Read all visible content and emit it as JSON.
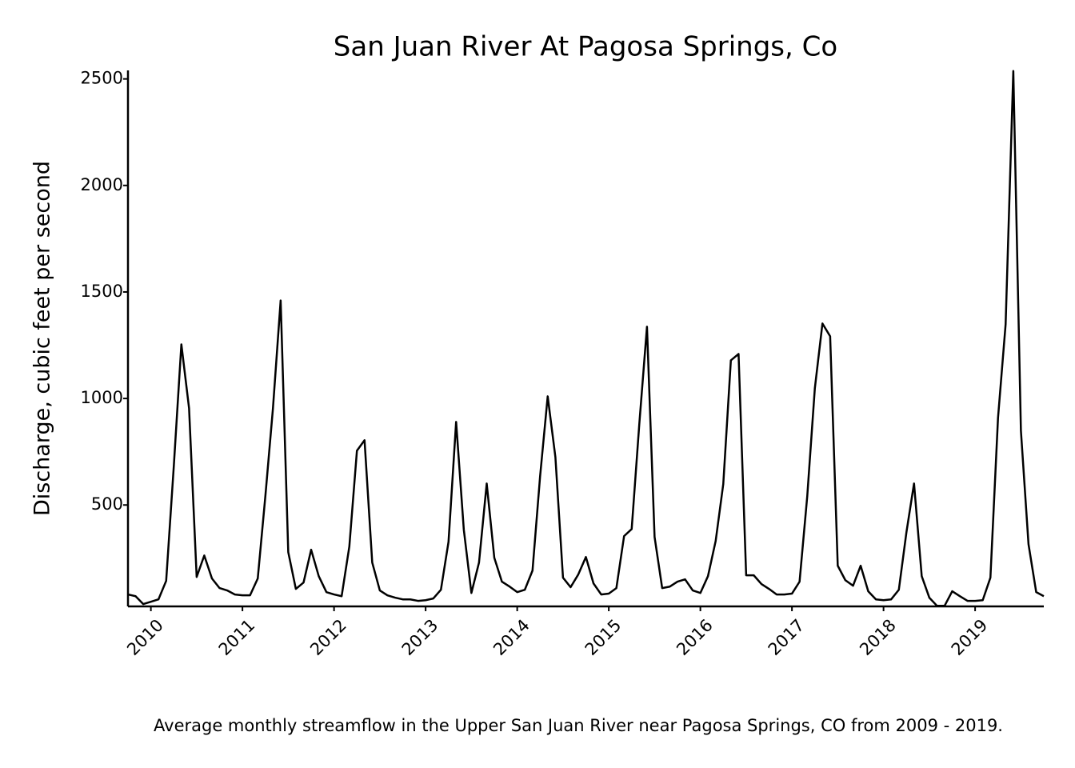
{
  "chart_data": {
    "type": "line",
    "title": "San Juan River At Pagosa Springs, Co",
    "y_label": "Discharge, cubic feet per second",
    "caption": "Average monthly streamflow in the Upper San Juan River near Pagosa Springs, CO from 2009 - 2019.",
    "grid": false,
    "xlim": [
      2009.75,
      2019.75
    ],
    "xticks": [
      2010,
      2011,
      2012,
      2013,
      2014,
      2015,
      2016,
      2017,
      2018,
      2019
    ],
    "ylim": [
      24,
      2540
    ],
    "yticks": [
      500,
      1000,
      1500,
      2000,
      2500
    ],
    "x": [
      2009.75,
      2009.833,
      2009.917,
      2010,
      2010.083,
      2010.167,
      2010.25,
      2010.333,
      2010.417,
      2010.5,
      2010.583,
      2010.667,
      2010.75,
      2010.833,
      2010.917,
      2011,
      2011.083,
      2011.167,
      2011.25,
      2011.333,
      2011.417,
      2011.5,
      2011.583,
      2011.667,
      2011.75,
      2011.833,
      2011.917,
      2012,
      2012.083,
      2012.167,
      2012.25,
      2012.333,
      2012.417,
      2012.5,
      2012.583,
      2012.667,
      2012.75,
      2012.833,
      2012.917,
      2013,
      2013.083,
      2013.167,
      2013.25,
      2013.333,
      2013.417,
      2013.5,
      2013.583,
      2013.667,
      2013.75,
      2013.833,
      2013.917,
      2014,
      2014.083,
      2014.167,
      2014.25,
      2014.333,
      2014.417,
      2014.5,
      2014.583,
      2014.667,
      2014.75,
      2014.833,
      2014.917,
      2015,
      2015.083,
      2015.167,
      2015.25,
      2015.333,
      2015.417,
      2015.5,
      2015.583,
      2015.667,
      2015.75,
      2015.833,
      2015.917,
      2016,
      2016.083,
      2016.167,
      2016.25,
      2016.333,
      2016.417,
      2016.5,
      2016.583,
      2016.667,
      2016.75,
      2016.833,
      2016.917,
      2017,
      2017.083,
      2017.167,
      2017.25,
      2017.333,
      2017.417,
      2017.5,
      2017.583,
      2017.667,
      2017.75,
      2017.833,
      2017.917,
      2018,
      2018.083,
      2018.167,
      2018.25,
      2018.333,
      2018.417,
      2018.5,
      2018.583,
      2018.667,
      2018.75,
      2018.833,
      2018.917,
      2019,
      2019.083,
      2019.167,
      2019.25,
      2019.333,
      2019.417,
      2019.5,
      2019.583,
      2019.667,
      2019.75
    ],
    "series": [
      {
        "color": "#000000",
        "values": [
          80,
          72,
          35,
          46,
          57,
          144,
          680,
          1254,
          954,
          162,
          263,
          155,
          110,
          99,
          80,
          76,
          76,
          155,
          541,
          954,
          1460,
          279,
          106,
          136,
          290,
          166,
          91,
          80,
          72,
          305,
          755,
          804,
          230,
          99,
          76,
          65,
          57,
          57,
          50,
          53,
          61,
          102,
          327,
          890,
          384,
          87,
          230,
          601,
          252,
          140,
          117,
          91,
          102,
          192,
          635,
          1010,
          725,
          159,
          114,
          174,
          256,
          132,
          80,
          84,
          110,
          354,
          387,
          879,
          1337,
          350,
          110,
          117,
          140,
          151,
          99,
          87,
          166,
          331,
          598,
          1179,
          1209,
          170,
          170,
          129,
          106,
          80,
          80,
          84,
          140,
          541,
          1048,
          1352,
          1292,
          215,
          147,
          121,
          215,
          95,
          57,
          53,
          57,
          102,
          372,
          601,
          166,
          65,
          27,
          27,
          95,
          72,
          50,
          50,
          53,
          159,
          909,
          1348,
          2537,
          849,
          316,
          91,
          72
        ]
      }
    ]
  }
}
